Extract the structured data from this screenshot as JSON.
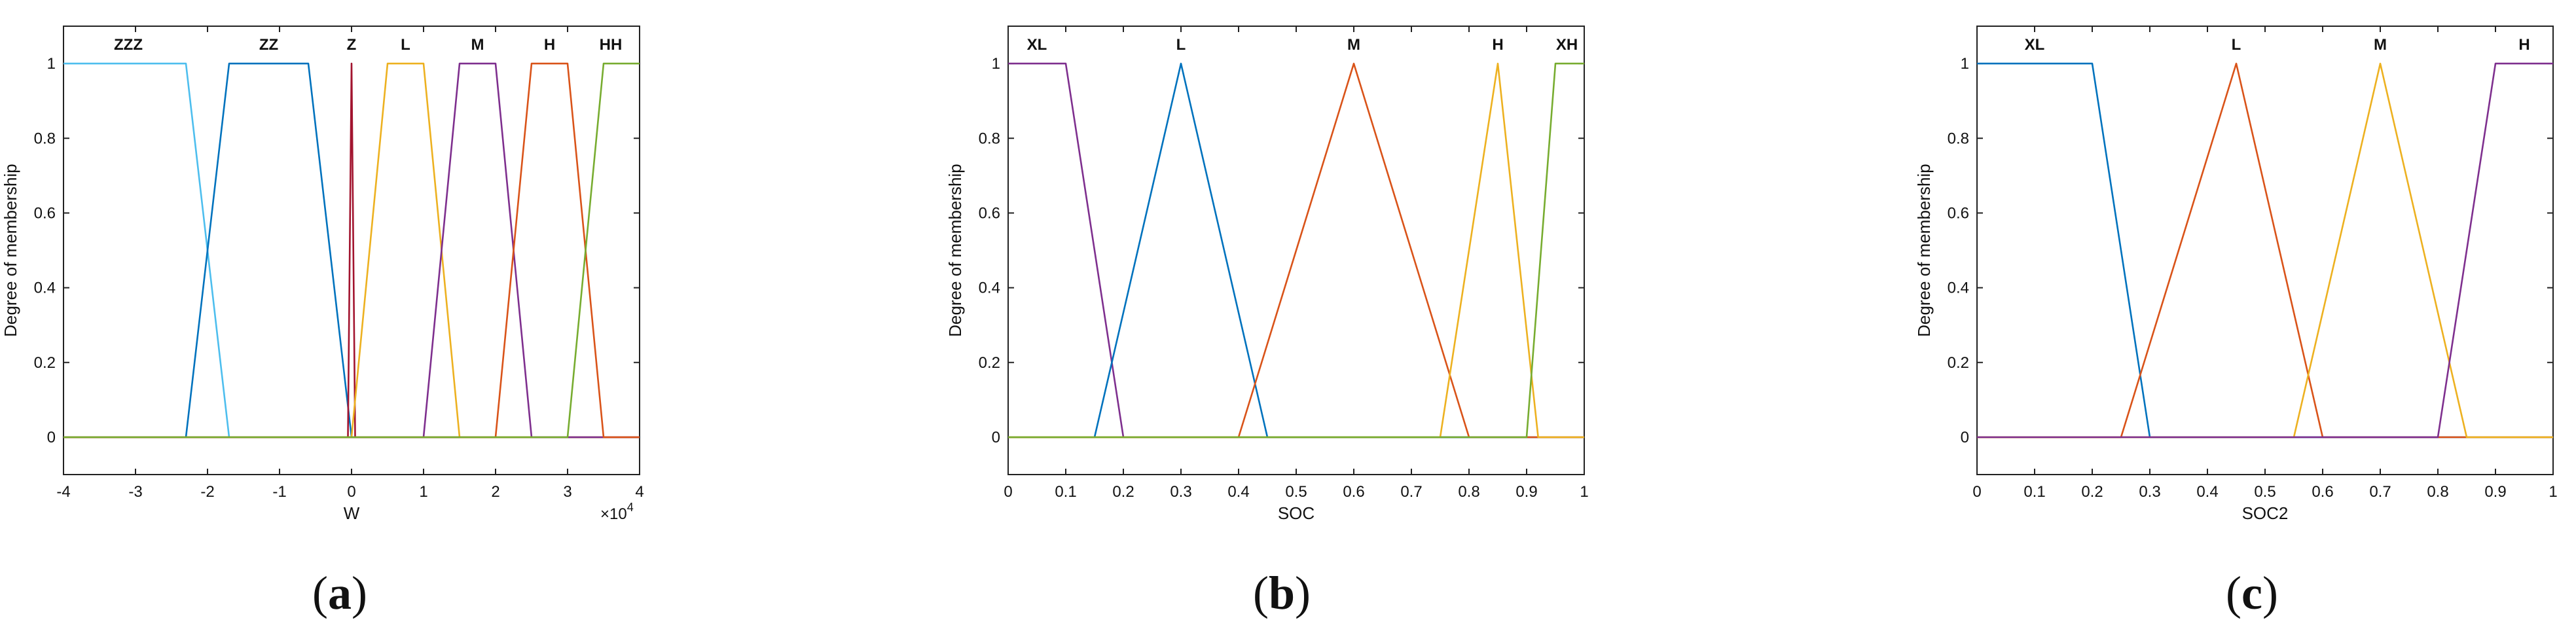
{
  "chart_data": [
    {
      "type": "line",
      "panel_label": "a",
      "xlabel": "W",
      "ylabel": "Degree of membership",
      "x_multiplier_label": "×10",
      "x_multiplier_exp": "4",
      "xlim": [
        -4,
        4
      ],
      "ylim": [
        -0.1,
        1.1
      ],
      "xticks": [
        -4,
        -3,
        -2,
        -1,
        0,
        1,
        2,
        3,
        4
      ],
      "xtick_labels": [
        "-4",
        "-3",
        "-2",
        "-1",
        "0",
        "1",
        "2",
        "3",
        "4"
      ],
      "yticks": [
        0,
        0.2,
        0.4,
        0.6,
        0.8,
        1
      ],
      "ytick_labels": [
        "0",
        "0.2",
        "0.4",
        "0.6",
        "0.8",
        "1"
      ],
      "grid": false,
      "series": [
        {
          "name": "ZZZ",
          "label_x": -3.1,
          "color": "#4DBEEE",
          "x": [
            -4,
            -2.3,
            -1.7,
            4
          ],
          "y": [
            1,
            1,
            0,
            0
          ]
        },
        {
          "name": "ZZ",
          "label_x": -1.15,
          "color": "#0072BD",
          "x": [
            -4,
            -2.3,
            -1.7,
            -0.6,
            0,
            4
          ],
          "y": [
            0,
            0,
            1,
            1,
            0,
            0
          ]
        },
        {
          "name": "Z",
          "label_x": 0,
          "color": "#A2142F",
          "x": [
            -4,
            -0.05,
            0,
            0.05,
            4
          ],
          "y": [
            0,
            0,
            1,
            0,
            0
          ]
        },
        {
          "name": "L",
          "label_x": 0.75,
          "color": "#EDB120",
          "x": [
            -4,
            0,
            0.5,
            1,
            1.5,
            4
          ],
          "y": [
            0,
            0,
            1,
            1,
            0,
            0
          ]
        },
        {
          "name": "M",
          "label_x": 1.75,
          "color": "#7E2F8E",
          "x": [
            -4,
            1,
            1.5,
            2,
            2.5,
            4
          ],
          "y": [
            0,
            0,
            1,
            1,
            0,
            0
          ]
        },
        {
          "name": "H",
          "label_x": 2.75,
          "color": "#D95319",
          "x": [
            -4,
            2,
            2.5,
            3,
            3.5,
            4
          ],
          "y": [
            0,
            0,
            1,
            1,
            0,
            0
          ]
        },
        {
          "name": "HH",
          "label_x": 3.6,
          "color": "#77AC30",
          "x": [
            -4,
            3,
            3.5,
            4
          ],
          "y": [
            0,
            0,
            1,
            1
          ]
        }
      ]
    },
    {
      "type": "line",
      "panel_label": "b",
      "xlabel": "SOC",
      "ylabel": "Degree of membership",
      "xlim": [
        0,
        1
      ],
      "ylim": [
        -0.1,
        1.1
      ],
      "xticks": [
        0,
        0.1,
        0.2,
        0.3,
        0.4,
        0.5,
        0.6,
        0.7,
        0.8,
        0.9,
        1
      ],
      "xtick_labels": [
        "0",
        "0.1",
        "0.2",
        "0.3",
        "0.4",
        "0.5",
        "0.6",
        "0.7",
        "0.8",
        "0.9",
        "1"
      ],
      "yticks": [
        0,
        0.2,
        0.4,
        0.6,
        0.8,
        1
      ],
      "ytick_labels": [
        "0",
        "0.2",
        "0.4",
        "0.6",
        "0.8",
        "1"
      ],
      "grid": false,
      "series": [
        {
          "name": "XL",
          "label_x": 0.05,
          "color": "#7E2F8E",
          "x": [
            0,
            0.1,
            0.2,
            1
          ],
          "y": [
            1,
            1,
            0,
            0
          ]
        },
        {
          "name": "L",
          "label_x": 0.3,
          "color": "#0072BD",
          "x": [
            0,
            0.15,
            0.3,
            0.45,
            1
          ],
          "y": [
            0,
            0,
            1,
            0,
            0
          ]
        },
        {
          "name": "M",
          "label_x": 0.6,
          "color": "#D95319",
          "x": [
            0,
            0.4,
            0.6,
            0.8,
            1
          ],
          "y": [
            0,
            0,
            1,
            0,
            0
          ]
        },
        {
          "name": "H",
          "label_x": 0.85,
          "color": "#EDB120",
          "x": [
            0,
            0.75,
            0.85,
            0.92,
            1
          ],
          "y": [
            0,
            0,
            1,
            0,
            0
          ]
        },
        {
          "name": "XH",
          "label_x": 0.97,
          "color": "#77AC30",
          "x": [
            0,
            0.9,
            0.95,
            1
          ],
          "y": [
            0,
            0,
            1,
            1
          ]
        }
      ]
    },
    {
      "type": "line",
      "panel_label": "c",
      "xlabel": "SOC2",
      "ylabel": "Degree of membership",
      "xlim": [
        0,
        1
      ],
      "ylim": [
        -0.1,
        1.1
      ],
      "xticks": [
        0,
        0.1,
        0.2,
        0.3,
        0.4,
        0.5,
        0.6,
        0.7,
        0.8,
        0.9,
        1
      ],
      "xtick_labels": [
        "0",
        "0.1",
        "0.2",
        "0.3",
        "0.4",
        "0.5",
        "0.6",
        "0.7",
        "0.8",
        "0.9",
        "1"
      ],
      "yticks": [
        0,
        0.2,
        0.4,
        0.6,
        0.8,
        1
      ],
      "ytick_labels": [
        "0",
        "0.2",
        "0.4",
        "0.6",
        "0.8",
        "1"
      ],
      "grid": false,
      "series": [
        {
          "name": "XL",
          "label_x": 0.1,
          "color": "#0072BD",
          "x": [
            0,
            0.2,
            0.3,
            1
          ],
          "y": [
            1,
            1,
            0,
            0
          ]
        },
        {
          "name": "L",
          "label_x": 0.45,
          "color": "#D95319",
          "x": [
            0,
            0.25,
            0.45,
            0.6,
            1
          ],
          "y": [
            0,
            0,
            1,
            0,
            0
          ]
        },
        {
          "name": "M",
          "label_x": 0.7,
          "color": "#EDB120",
          "x": [
            0,
            0.55,
            0.7,
            0.85,
            1
          ],
          "y": [
            0,
            0,
            1,
            0,
            0
          ]
        },
        {
          "name": "H",
          "label_x": 0.95,
          "color": "#7E2F8E",
          "x": [
            0,
            0.8,
            0.9,
            1
          ],
          "y": [
            0,
            0,
            1,
            1
          ]
        }
      ]
    }
  ]
}
